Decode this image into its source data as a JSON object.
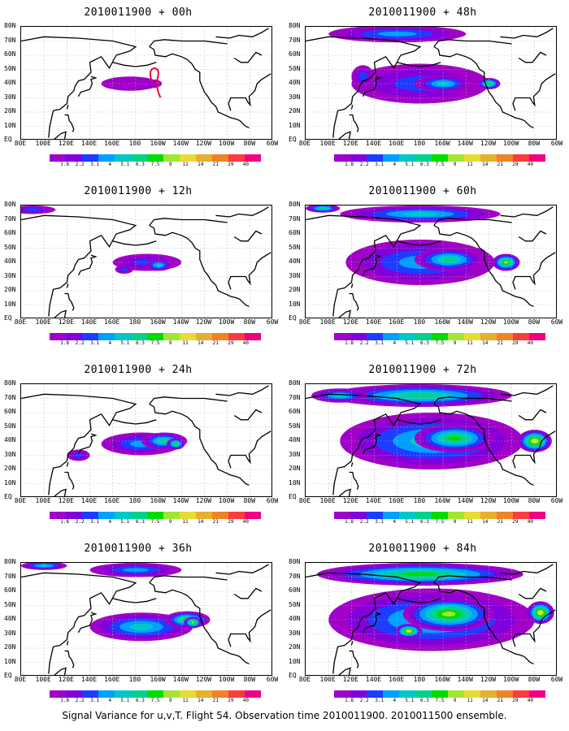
{
  "figure": {
    "caption": "Signal Variance for u,v,T. Flight 54. Observation time 2010011900. 2010011500 ensemble."
  },
  "axes": {
    "lat_labels": [
      "80N",
      "70N",
      "60N",
      "50N",
      "40N",
      "30N",
      "20N",
      "10N",
      "EQ"
    ],
    "lon_labels": [
      "80E",
      "100E",
      "120E",
      "140E",
      "160E",
      "180",
      "160W",
      "140W",
      "120W",
      "100W",
      "80W",
      "60W"
    ],
    "lon_range": [
      80,
      300
    ],
    "lat_range": [
      0,
      80
    ]
  },
  "colorbar": {
    "labels": [
      "1.8",
      "2.2",
      "3.1",
      "4",
      "5.1",
      "6.3",
      "7.5",
      "9",
      "11",
      "14",
      "21",
      "29",
      "40"
    ],
    "colors": [
      "#a000c8",
      "#8200dc",
      "#1e3cff",
      "#00a0ff",
      "#00c8c8",
      "#00d28c",
      "#00dc00",
      "#a0e632",
      "#e6dc32",
      "#e6af2d",
      "#f08228",
      "#fa3c3c",
      "#f00082"
    ]
  },
  "colors": {
    "coast": "#000000",
    "grid": "#b4b4b4",
    "track": "#f0004a"
  },
  "panels": [
    {
      "title": "2010011900 + 00h",
      "lead_hours": 0,
      "max_level_index": 1,
      "has_track": true
    },
    {
      "title": "2010011900 + 12h",
      "lead_hours": 12,
      "max_level_index": 4,
      "has_track": false
    },
    {
      "title": "2010011900 + 24h",
      "lead_hours": 24,
      "max_level_index": 6,
      "has_track": false
    },
    {
      "title": "2010011900 + 36h",
      "lead_hours": 36,
      "max_level_index": 7,
      "has_track": false
    },
    {
      "title": "2010011900 + 48h",
      "lead_hours": 48,
      "max_level_index": 6,
      "has_track": false
    },
    {
      "title": "2010011900 + 60h",
      "lead_hours": 60,
      "max_level_index": 7,
      "has_track": false
    },
    {
      "title": "2010011900 + 72h",
      "lead_hours": 72,
      "max_level_index": 8,
      "has_track": false
    },
    {
      "title": "2010011900 + 84h",
      "lead_hours": 84,
      "max_level_index": 8,
      "has_track": false
    }
  ]
}
